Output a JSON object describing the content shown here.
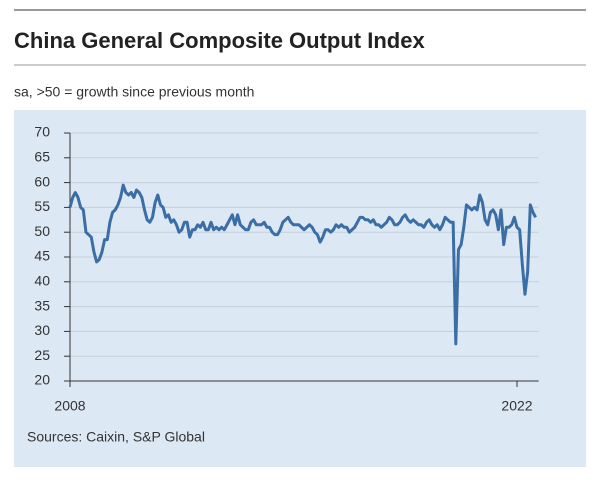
{
  "chart_data": {
    "type": "line",
    "title": "China General Composite Output Index",
    "subtitle": "sa, >50 = growth since previous month",
    "source": "Sources: Caixin, S&P Global",
    "categories": [
      "2008",
      null,
      null,
      null,
      null,
      null,
      null,
      null,
      null,
      null,
      null,
      null,
      null,
      null,
      null,
      null,
      null,
      null,
      null,
      null,
      null,
      null,
      null,
      null,
      null,
      null,
      null,
      null,
      null,
      null,
      null,
      null,
      null,
      null,
      null,
      null,
      null,
      null,
      null,
      null,
      null,
      null,
      null,
      null,
      null,
      null,
      null,
      null,
      null,
      null,
      null,
      null,
      null,
      null,
      null,
      null,
      null,
      null,
      null,
      null,
      null,
      null,
      null,
      null,
      null,
      null,
      null,
      null,
      null,
      null,
      null,
      null,
      null,
      null,
      null,
      null,
      null,
      null,
      null,
      null,
      null,
      null,
      null,
      null,
      null,
      null,
      null,
      null,
      null,
      null,
      null,
      null,
      null,
      null,
      null,
      null,
      null,
      null,
      null,
      null,
      null,
      null,
      null,
      null,
      null,
      null,
      null,
      null,
      null,
      null,
      null,
      null,
      null,
      null,
      null,
      null,
      null,
      null,
      null,
      null,
      null,
      null,
      null,
      null,
      null,
      null,
      null,
      null,
      null,
      null,
      null,
      null,
      null,
      null,
      null,
      null,
      null,
      null,
      null,
      null,
      null,
      null,
      null,
      null,
      null,
      null,
      null,
      null,
      null,
      null,
      null,
      null,
      null,
      null,
      null,
      null,
      null,
      null,
      null,
      null,
      null,
      null,
      null,
      null,
      null,
      null,
      null,
      null,
      "2022",
      null,
      null,
      null,
      null,
      null,
      null,
      null
    ],
    "series": [
      {
        "name": "China General Composite Output Index",
        "color": "#3b6ea5",
        "values": [
          55,
          57,
          58,
          57,
          55,
          54.5,
          50,
          49.5,
          49,
          46,
          44,
          44.5,
          46,
          48.5,
          48.5,
          52,
          54,
          54.5,
          55.5,
          57,
          59.5,
          58,
          57.5,
          58,
          57,
          58.5,
          58,
          57,
          54.5,
          52.5,
          52,
          53,
          56,
          57.5,
          55.5,
          55,
          53,
          53.5,
          52,
          52.5,
          51.5,
          50,
          50.5,
          52,
          52,
          49,
          50.5,
          50.5,
          51.5,
          51,
          52,
          50.5,
          50.5,
          52,
          50.5,
          51,
          50.5,
          51,
          50.5,
          51.5,
          52.5,
          53.5,
          51.5,
          53.5,
          51.5,
          51,
          50.5,
          50.5,
          52,
          52.5,
          51.5,
          51.5,
          51.5,
          52,
          51,
          51,
          50,
          49.5,
          49.5,
          50.5,
          52,
          52.5,
          53,
          52,
          51.5,
          51.5,
          51.5,
          51,
          50.5,
          51,
          51.5,
          51,
          50,
          49.5,
          48,
          49,
          50.5,
          50.5,
          50,
          50.5,
          51.5,
          51,
          51.5,
          51,
          51,
          50,
          50.5,
          51,
          52,
          53,
          53,
          52.5,
          52.5,
          52,
          52.5,
          51.5,
          51.5,
          51,
          51.5,
          52,
          53,
          52.5,
          51.5,
          51.5,
          52,
          53,
          53.5,
          52.5,
          52,
          52.5,
          52,
          51.5,
          51.5,
          51,
          52,
          52.5,
          51.5,
          51,
          51.5,
          50.5,
          51.5,
          53,
          52.5,
          52,
          52,
          27.5,
          46.5,
          47.5,
          51,
          55.5,
          55,
          54.5,
          55,
          54.5,
          57.5,
          56,
          52.5,
          51.5,
          54,
          54.5,
          53.5,
          50.5,
          54.5,
          47.5,
          51,
          51,
          51.5,
          53,
          51,
          50.5,
          43.5,
          37.5,
          42,
          55.5,
          54,
          53
        ]
      }
    ],
    "ylim": [
      20,
      70
    ],
    "yticks": [
      20,
      25,
      30,
      35,
      40,
      45,
      50,
      55,
      60,
      65,
      70
    ],
    "grid": true
  }
}
